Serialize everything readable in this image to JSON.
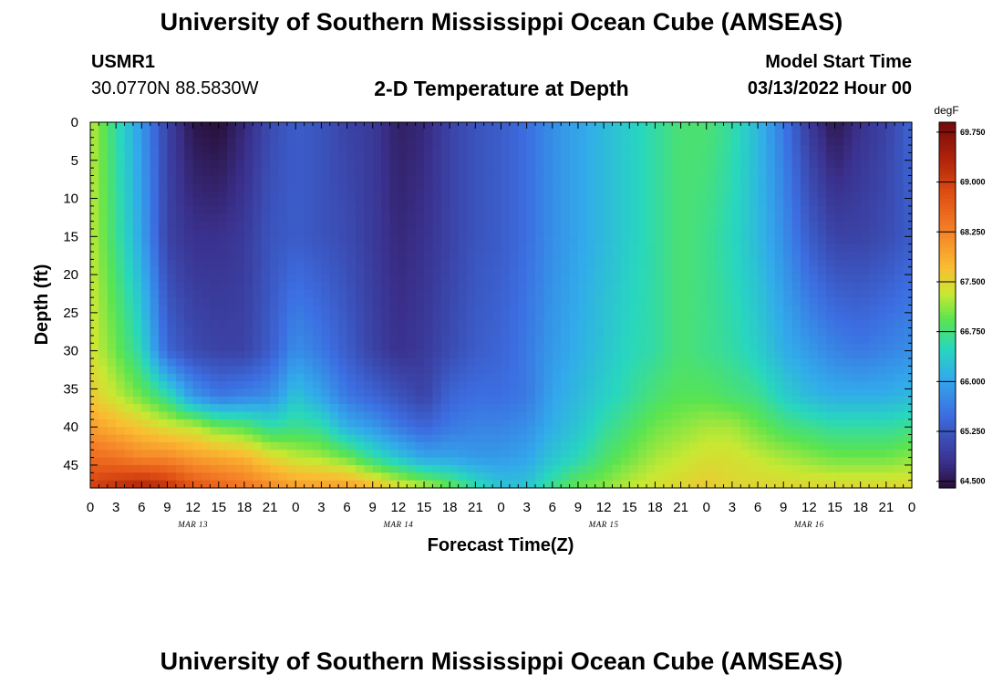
{
  "page": {
    "title": "University of Southern Mississippi Ocean Cube (AMSEAS)",
    "footer_title": "University of Southern Mississippi Ocean Cube (AMSEAS)",
    "station": "USMR1",
    "coords": "30.0770N  88.5830W",
    "subtitle": "2-D Temperature at Depth",
    "model_start_label": "Model Start Time",
    "model_start_value": "03/13/2022 Hour 00"
  },
  "chart_data": {
    "type": "heatmap",
    "title": "2-D Temperature at Depth",
    "xlabel": "Forecast Time(Z)",
    "ylabel": "Depth (ft)",
    "colorbar_unit": "degF",
    "colorbar_ticks": [
      "69.750",
      "69.000",
      "68.250",
      "67.500",
      "66.750",
      "66.000",
      "65.250",
      "64.500"
    ],
    "colorbar_range": [
      64.4,
      69.9
    ],
    "xlim": [
      0,
      96
    ],
    "ylim": [
      48,
      0
    ],
    "x_ticks": [
      "0",
      "3",
      "6",
      "9",
      "12",
      "15",
      "18",
      "21",
      "0",
      "3",
      "6",
      "9",
      "12",
      "15",
      "18",
      "21",
      "0",
      "3",
      "6",
      "9",
      "12",
      "15",
      "18",
      "21",
      "0",
      "3",
      "6",
      "9",
      "12",
      "15",
      "18",
      "21",
      "0"
    ],
    "y_ticks": [
      "0",
      "5",
      "10",
      "15",
      "20",
      "25",
      "30",
      "35",
      "40",
      "45"
    ],
    "y_tick_values": [
      0,
      5,
      10,
      15,
      20,
      25,
      30,
      35,
      40,
      45
    ],
    "date_labels": [
      "MAR 13",
      "MAR 14",
      "MAR 15",
      "MAR 16"
    ],
    "date_label_hours": [
      12,
      36,
      60,
      84
    ],
    "profile_hours": [
      0,
      3,
      6,
      9,
      12,
      15,
      18,
      21,
      24,
      27,
      30,
      33,
      36,
      39,
      42,
      45,
      48,
      51,
      54,
      57,
      60,
      63,
      66,
      69,
      72,
      75,
      78,
      81,
      84,
      87,
      90,
      93,
      96
    ],
    "profile_depths": [
      0,
      15,
      30,
      36,
      40,
      44,
      48
    ],
    "temperature_profiles": [
      [
        67.3,
        67.3,
        67.4,
        67.6,
        68.0,
        68.5,
        69.0
      ],
      [
        66.6,
        66.7,
        67.0,
        67.3,
        67.8,
        68.4,
        69.2
      ],
      [
        65.9,
        66.0,
        66.5,
        67.0,
        67.6,
        68.2,
        69.4
      ],
      [
        65.0,
        65.0,
        65.4,
        66.6,
        67.4,
        68.2,
        69.2
      ],
      [
        64.5,
        64.8,
        65.1,
        65.9,
        67.3,
        68.0,
        68.8
      ],
      [
        64.4,
        64.8,
        65.0,
        65.6,
        67.0,
        67.9,
        68.6
      ],
      [
        64.7,
        64.9,
        65.0,
        65.7,
        66.9,
        67.8,
        68.4
      ],
      [
        65.1,
        65.2,
        65.3,
        65.8,
        66.6,
        67.5,
        68.2
      ],
      [
        65.3,
        65.3,
        65.8,
        66.3,
        66.7,
        67.3,
        68.0
      ],
      [
        65.2,
        65.2,
        65.6,
        66.0,
        66.6,
        67.2,
        68.0
      ],
      [
        65.0,
        65.1,
        65.3,
        65.6,
        66.1,
        67.0,
        68.0
      ],
      [
        64.9,
        64.9,
        65.0,
        65.4,
        65.9,
        66.6,
        67.8
      ],
      [
        64.6,
        64.7,
        64.8,
        65.2,
        65.6,
        66.3,
        67.5
      ],
      [
        64.7,
        64.8,
        64.9,
        65.0,
        65.4,
        66.0,
        67.3
      ],
      [
        65.0,
        65.0,
        65.1,
        65.4,
        65.6,
        66.0,
        67.0
      ],
      [
        65.2,
        65.2,
        65.3,
        65.5,
        65.7,
        65.9,
        66.6
      ],
      [
        65.3,
        65.3,
        65.4,
        65.5,
        65.7,
        65.9,
        66.3
      ],
      [
        65.5,
        65.5,
        65.6,
        65.6,
        65.8,
        66.0,
        66.3
      ],
      [
        65.8,
        65.8,
        65.9,
        66.0,
        66.1,
        66.3,
        66.7
      ],
      [
        66.0,
        66.0,
        66.1,
        66.2,
        66.3,
        66.5,
        67.0
      ],
      [
        66.2,
        66.2,
        66.3,
        66.4,
        66.6,
        66.8,
        67.1
      ],
      [
        66.4,
        66.4,
        66.5,
        66.6,
        66.8,
        67.0,
        67.3
      ],
      [
        66.6,
        66.6,
        66.6,
        66.8,
        67.0,
        67.2,
        67.4
      ],
      [
        66.8,
        66.8,
        66.8,
        66.9,
        67.1,
        67.3,
        67.5
      ],
      [
        66.8,
        66.7,
        66.7,
        66.9,
        67.2,
        67.4,
        67.6
      ],
      [
        66.6,
        66.5,
        66.6,
        66.8,
        67.2,
        67.4,
        67.5
      ],
      [
        66.2,
        66.2,
        66.4,
        66.7,
        67.0,
        67.3,
        67.5
      ],
      [
        65.6,
        65.8,
        66.1,
        66.4,
        66.8,
        67.2,
        67.5
      ],
      [
        64.9,
        65.3,
        65.9,
        66.2,
        66.7,
        67.1,
        67.5
      ],
      [
        64.5,
        65.0,
        65.7,
        66.1,
        66.6,
        67.0,
        67.5
      ],
      [
        64.8,
        65.0,
        65.6,
        66.1,
        66.6,
        67.0,
        67.5
      ],
      [
        65.0,
        65.1,
        65.7,
        66.1,
        66.6,
        67.0,
        67.5
      ],
      [
        65.4,
        65.3,
        65.8,
        66.2,
        66.7,
        67.1,
        67.5
      ]
    ]
  }
}
